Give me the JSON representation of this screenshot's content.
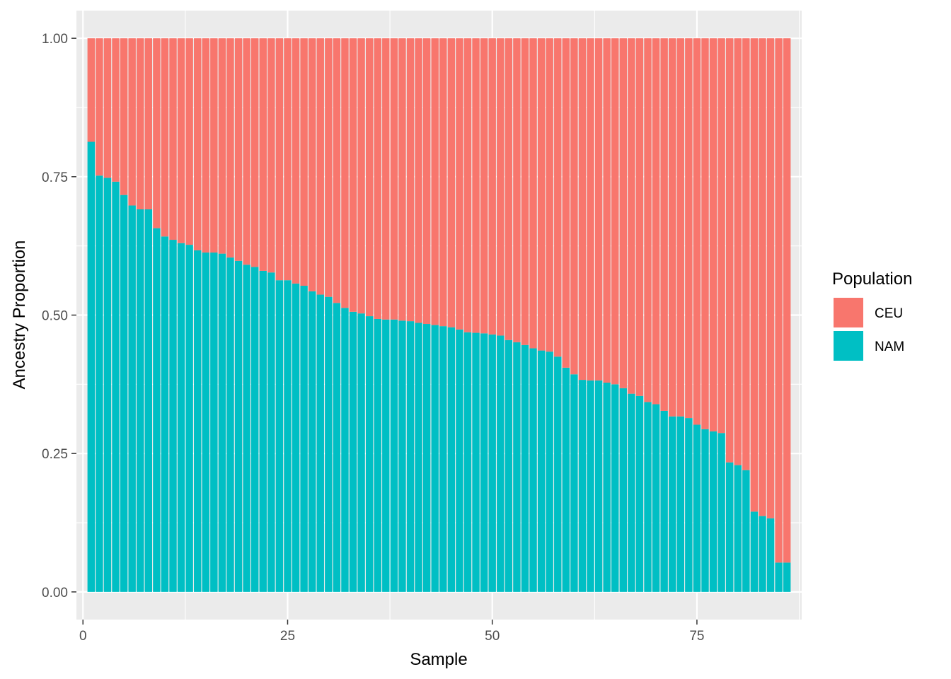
{
  "chart_data": {
    "type": "bar",
    "stacked": true,
    "title": "",
    "xlabel": "Sample",
    "ylabel": "Ancestry Proportion",
    "xlim": [
      -0.8,
      87.8
    ],
    "ylim": [
      -0.05,
      1.05
    ],
    "x_ticks": [
      0,
      25,
      50,
      75
    ],
    "x_tick_labels": [
      "0",
      "25",
      "50",
      "75"
    ],
    "y_ticks": [
      0,
      0.25,
      0.5,
      0.75,
      1.0
    ],
    "y_tick_labels": [
      "0.00",
      "0.25",
      "0.50",
      "0.75",
      "1.00"
    ],
    "grid": true,
    "legend": {
      "title": "Population",
      "position": "right"
    },
    "colors": {
      "CEU": "#F8766D",
      "NAM": "#00BFC4",
      "panel": "#EBEBEB",
      "grid": "#FFFFFF"
    },
    "x": [
      1,
      2,
      3,
      4,
      5,
      6,
      7,
      8,
      9,
      10,
      11,
      12,
      13,
      14,
      15,
      16,
      17,
      18,
      19,
      20,
      21,
      22,
      23,
      24,
      25,
      26,
      27,
      28,
      29,
      30,
      31,
      32,
      33,
      34,
      35,
      36,
      37,
      38,
      39,
      40,
      41,
      42,
      43,
      44,
      45,
      46,
      47,
      48,
      49,
      50,
      51,
      52,
      53,
      54,
      55,
      56,
      57,
      58,
      59,
      60,
      61,
      62,
      63,
      64,
      65,
      66,
      67,
      68,
      69,
      70,
      71,
      72,
      73,
      74,
      75,
      76,
      77,
      78,
      79,
      80,
      81,
      82,
      83,
      84,
      85,
      86
    ],
    "series": [
      {
        "name": "NAM",
        "values": [
          0.813,
          0.752,
          0.748,
          0.741,
          0.717,
          0.698,
          0.691,
          0.691,
          0.657,
          0.642,
          0.636,
          0.63,
          0.627,
          0.617,
          0.613,
          0.613,
          0.611,
          0.604,
          0.598,
          0.591,
          0.587,
          0.58,
          0.577,
          0.563,
          0.563,
          0.557,
          0.553,
          0.543,
          0.537,
          0.533,
          0.522,
          0.513,
          0.506,
          0.503,
          0.498,
          0.493,
          0.492,
          0.492,
          0.49,
          0.489,
          0.486,
          0.484,
          0.482,
          0.48,
          0.478,
          0.474,
          0.469,
          0.468,
          0.467,
          0.465,
          0.463,
          0.455,
          0.451,
          0.446,
          0.44,
          0.436,
          0.434,
          0.425,
          0.405,
          0.393,
          0.383,
          0.382,
          0.382,
          0.378,
          0.375,
          0.368,
          0.358,
          0.354,
          0.343,
          0.339,
          0.327,
          0.317,
          0.317,
          0.314,
          0.302,
          0.294,
          0.29,
          0.287,
          0.234,
          0.229,
          0.22,
          0.145,
          0.137,
          0.133,
          0.053,
          0.053
        ]
      },
      {
        "name": "CEU",
        "values": [
          0.187,
          0.248,
          0.252,
          0.259,
          0.283,
          0.302,
          0.309,
          0.309,
          0.343,
          0.358,
          0.364,
          0.37,
          0.373,
          0.383,
          0.387,
          0.387,
          0.389,
          0.396,
          0.402,
          0.409,
          0.413,
          0.42,
          0.423,
          0.437,
          0.437,
          0.443,
          0.447,
          0.457,
          0.463,
          0.467,
          0.478,
          0.487,
          0.494,
          0.497,
          0.502,
          0.507,
          0.508,
          0.508,
          0.51,
          0.511,
          0.514,
          0.516,
          0.518,
          0.52,
          0.522,
          0.526,
          0.531,
          0.532,
          0.533,
          0.535,
          0.537,
          0.545,
          0.549,
          0.554,
          0.56,
          0.564,
          0.566,
          0.575,
          0.595,
          0.607,
          0.617,
          0.618,
          0.618,
          0.622,
          0.625,
          0.632,
          0.642,
          0.646,
          0.657,
          0.661,
          0.673,
          0.683,
          0.683,
          0.686,
          0.698,
          0.706,
          0.71,
          0.713,
          0.766,
          0.771,
          0.78,
          0.855,
          0.863,
          0.867,
          0.947,
          0.947
        ]
      }
    ]
  }
}
